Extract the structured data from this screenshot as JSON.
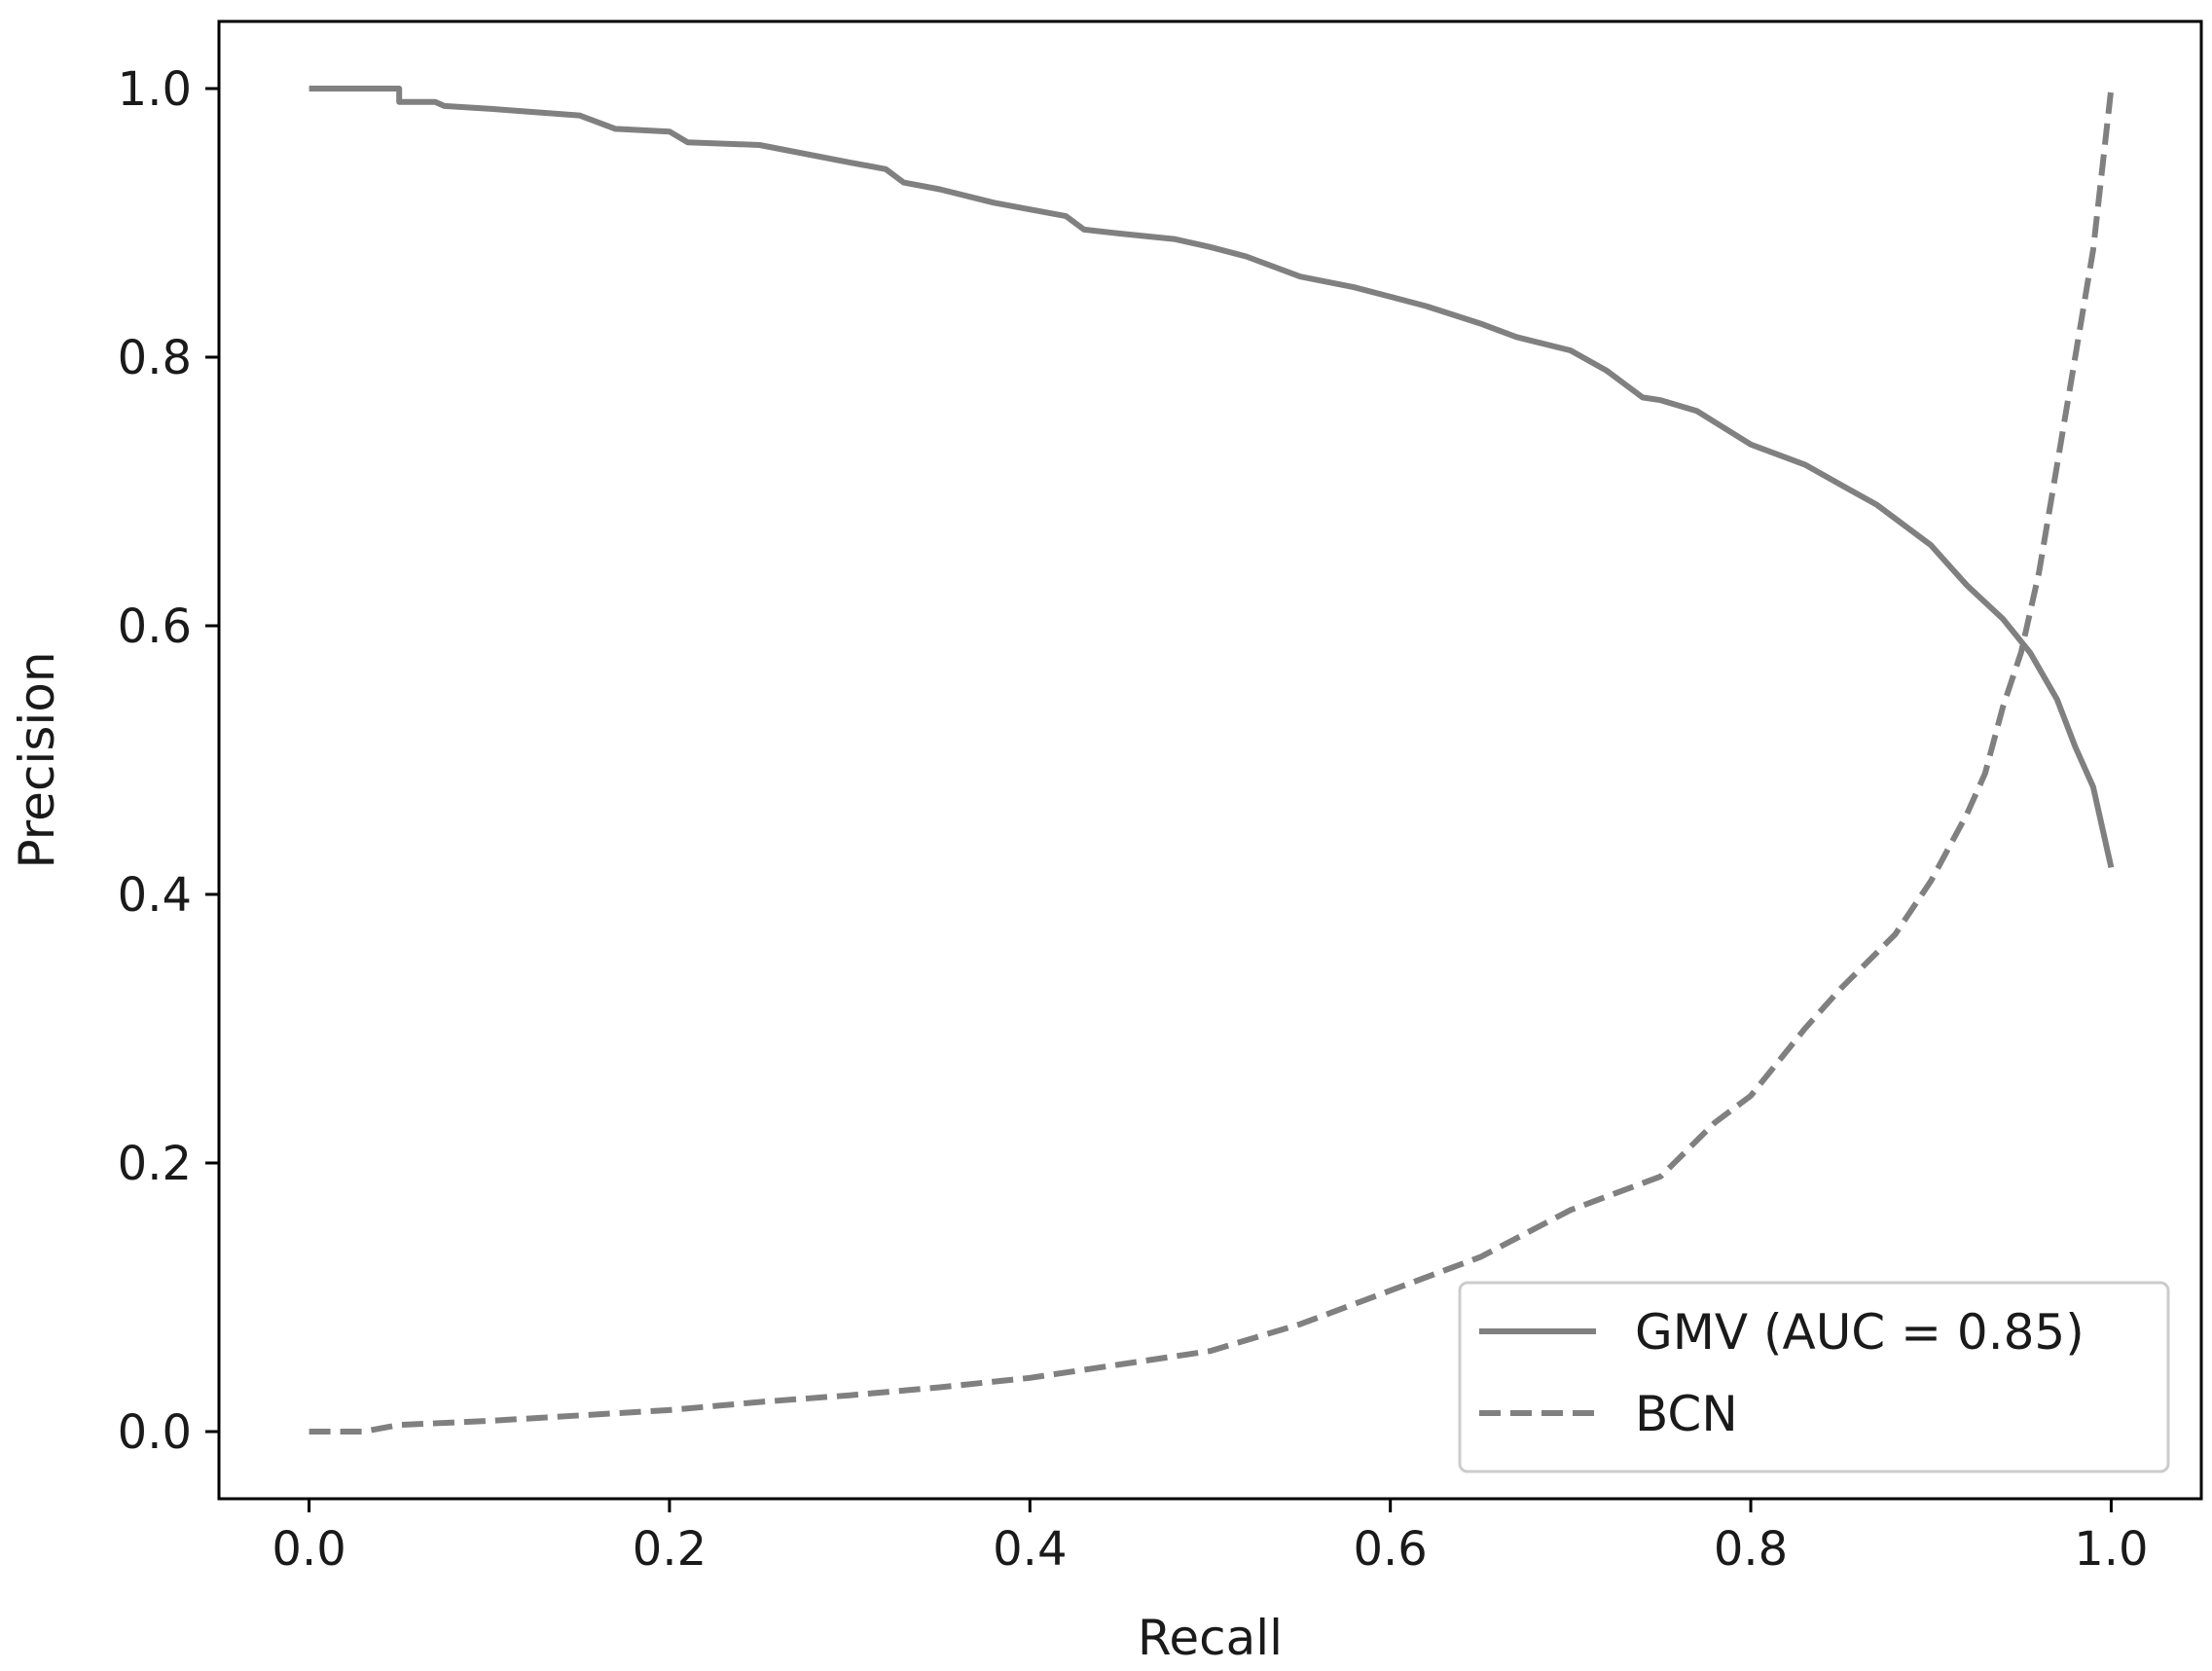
{
  "chart_data": {
    "type": "line",
    "title": "",
    "xlabel": "Recall",
    "ylabel": "Precision",
    "xlim": [
      -0.05,
      1.05
    ],
    "ylim": [
      -0.05,
      1.05
    ],
    "xticks": [
      "0.0",
      "0.2",
      "0.4",
      "0.6",
      "0.8",
      "1.0"
    ],
    "yticks": [
      "0.0",
      "0.2",
      "0.4",
      "0.6",
      "0.8",
      "1.0"
    ],
    "grid": false,
    "legend": {
      "position": "lower-right"
    },
    "series": [
      {
        "name": "GMV (AUC = 0.85)",
        "style": "solid",
        "color": "#808080",
        "x": [
          0.0,
          0.05,
          0.05,
          0.07,
          0.075,
          0.1,
          0.12,
          0.15,
          0.17,
          0.2,
          0.21,
          0.25,
          0.3,
          0.32,
          0.33,
          0.35,
          0.38,
          0.4,
          0.42,
          0.43,
          0.45,
          0.48,
          0.5,
          0.52,
          0.55,
          0.58,
          0.6,
          0.62,
          0.65,
          0.67,
          0.7,
          0.72,
          0.74,
          0.75,
          0.77,
          0.8,
          0.83,
          0.85,
          0.87,
          0.9,
          0.92,
          0.94,
          0.955,
          0.97,
          0.98,
          0.99,
          1.0
        ],
        "y": [
          1.0,
          1.0,
          0.99,
          0.99,
          0.987,
          0.985,
          0.983,
          0.98,
          0.97,
          0.968,
          0.96,
          0.958,
          0.945,
          0.94,
          0.93,
          0.925,
          0.915,
          0.91,
          0.905,
          0.895,
          0.892,
          0.888,
          0.882,
          0.875,
          0.86,
          0.852,
          0.845,
          0.838,
          0.825,
          0.815,
          0.805,
          0.79,
          0.77,
          0.768,
          0.76,
          0.735,
          0.72,
          0.705,
          0.69,
          0.66,
          0.63,
          0.605,
          0.58,
          0.545,
          0.51,
          0.48,
          0.42
        ]
      },
      {
        "name": "BCN",
        "style": "dashed",
        "color": "#808080",
        "x": [
          0.0,
          0.03,
          0.05,
          0.1,
          0.15,
          0.2,
          0.25,
          0.3,
          0.35,
          0.4,
          0.45,
          0.5,
          0.55,
          0.6,
          0.65,
          0.7,
          0.75,
          0.78,
          0.8,
          0.83,
          0.85,
          0.88,
          0.9,
          0.92,
          0.93,
          0.94,
          0.95,
          0.96,
          0.97,
          0.98,
          0.99,
          1.0
        ],
        "y": [
          0.0,
          0.0,
          0.005,
          0.008,
          0.012,
          0.016,
          0.022,
          0.027,
          0.033,
          0.04,
          0.05,
          0.06,
          0.08,
          0.105,
          0.13,
          0.165,
          0.19,
          0.23,
          0.25,
          0.3,
          0.33,
          0.37,
          0.41,
          0.46,
          0.49,
          0.54,
          0.58,
          0.64,
          0.72,
          0.8,
          0.88,
          1.0
        ]
      }
    ]
  }
}
